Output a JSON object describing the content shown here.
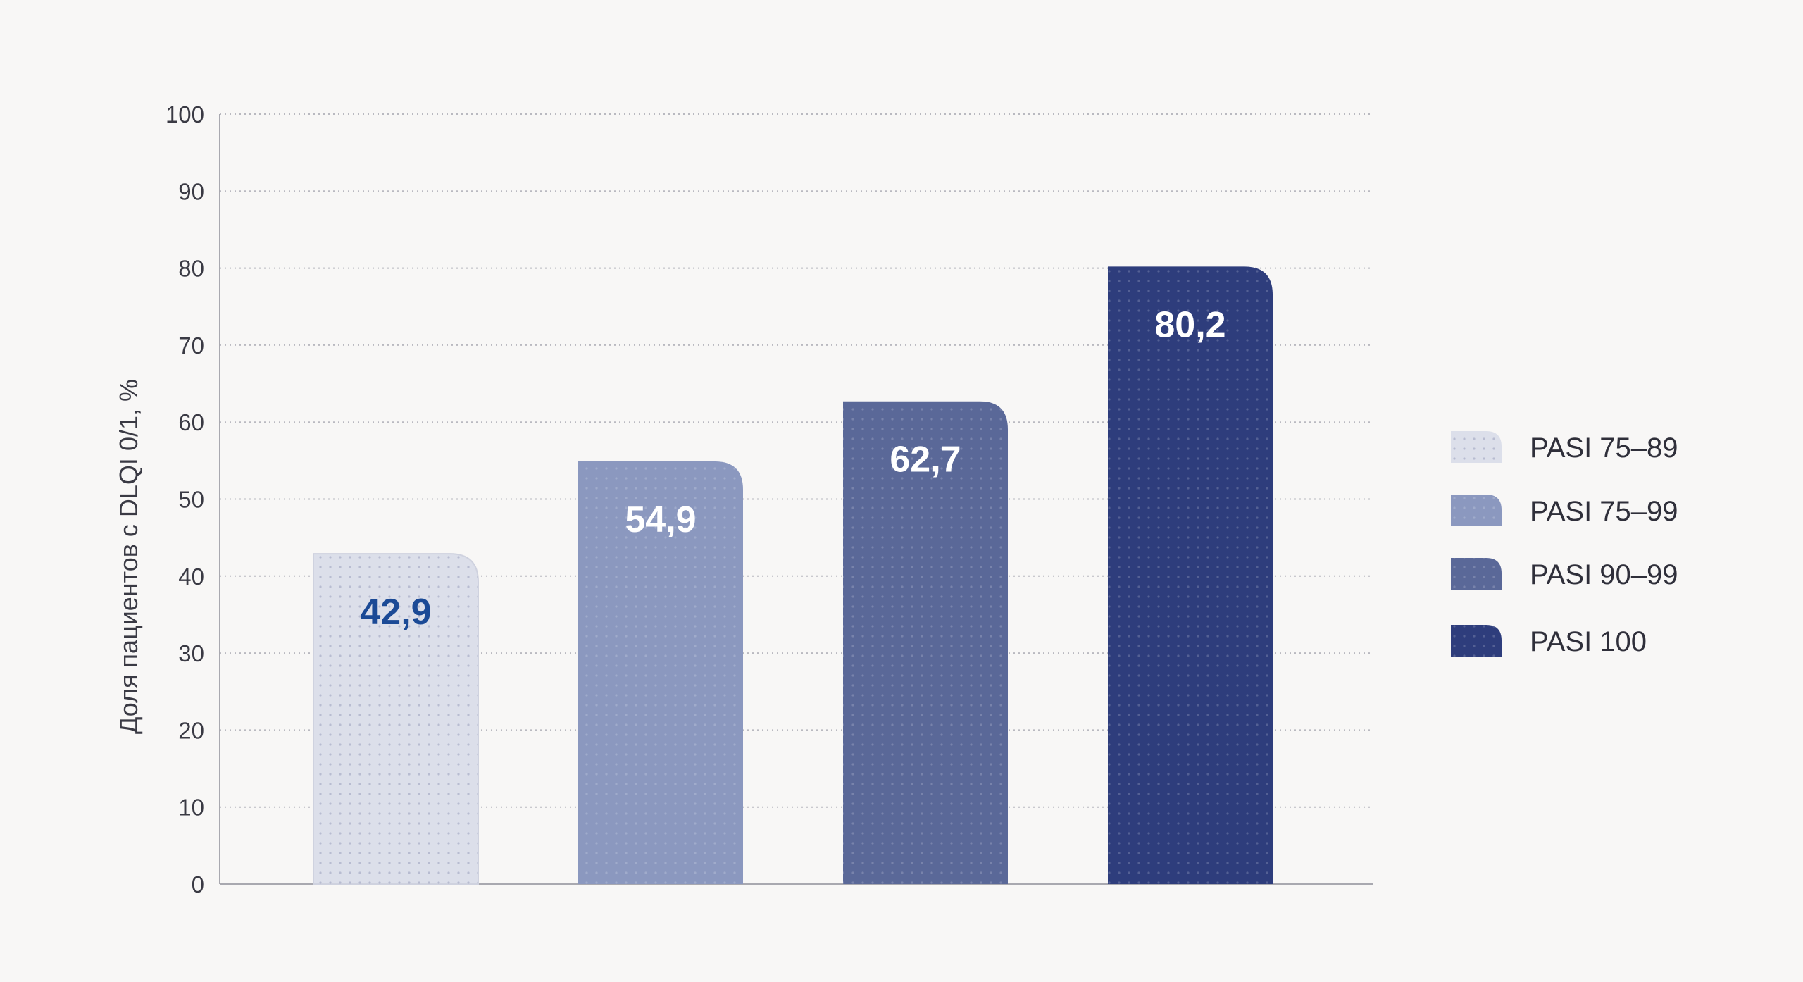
{
  "chart_data": {
    "type": "bar",
    "categories": [
      "PASI 75–89",
      "PASI 75–99",
      "PASI 90–99",
      "PASI 100"
    ],
    "values": [
      42.9,
      54.9,
      62.7,
      80.2
    ],
    "data_labels": [
      "42,9",
      "54,9",
      "62,7",
      "80,2"
    ],
    "ylabel": "Доля пациентов с DLQI 0/1, %",
    "xlabel": "",
    "ylim": [
      0,
      100
    ],
    "yticks": [
      0,
      10,
      20,
      30,
      40,
      50,
      60,
      70,
      80,
      90,
      100
    ],
    "grid": true,
    "legend_position": "right",
    "colors": [
      "#dcdfea",
      "#8b98bf",
      "#5a6898",
      "#2e3d7c"
    ],
    "label_colors": [
      "#1b4a96",
      "#ffffff",
      "#ffffff",
      "#ffffff"
    ]
  }
}
